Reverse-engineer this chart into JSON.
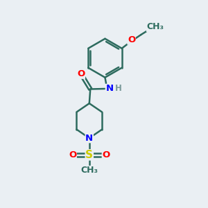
{
  "bg_color": "#eaeff3",
  "bond_color": "#2d6b5e",
  "bond_width": 1.8,
  "atom_colors": {
    "O": "#ff0000",
    "N": "#0000ff",
    "S": "#cccc00",
    "H": "#7a9a9a",
    "C": "#2d6b5e"
  },
  "font_size": 9.5
}
